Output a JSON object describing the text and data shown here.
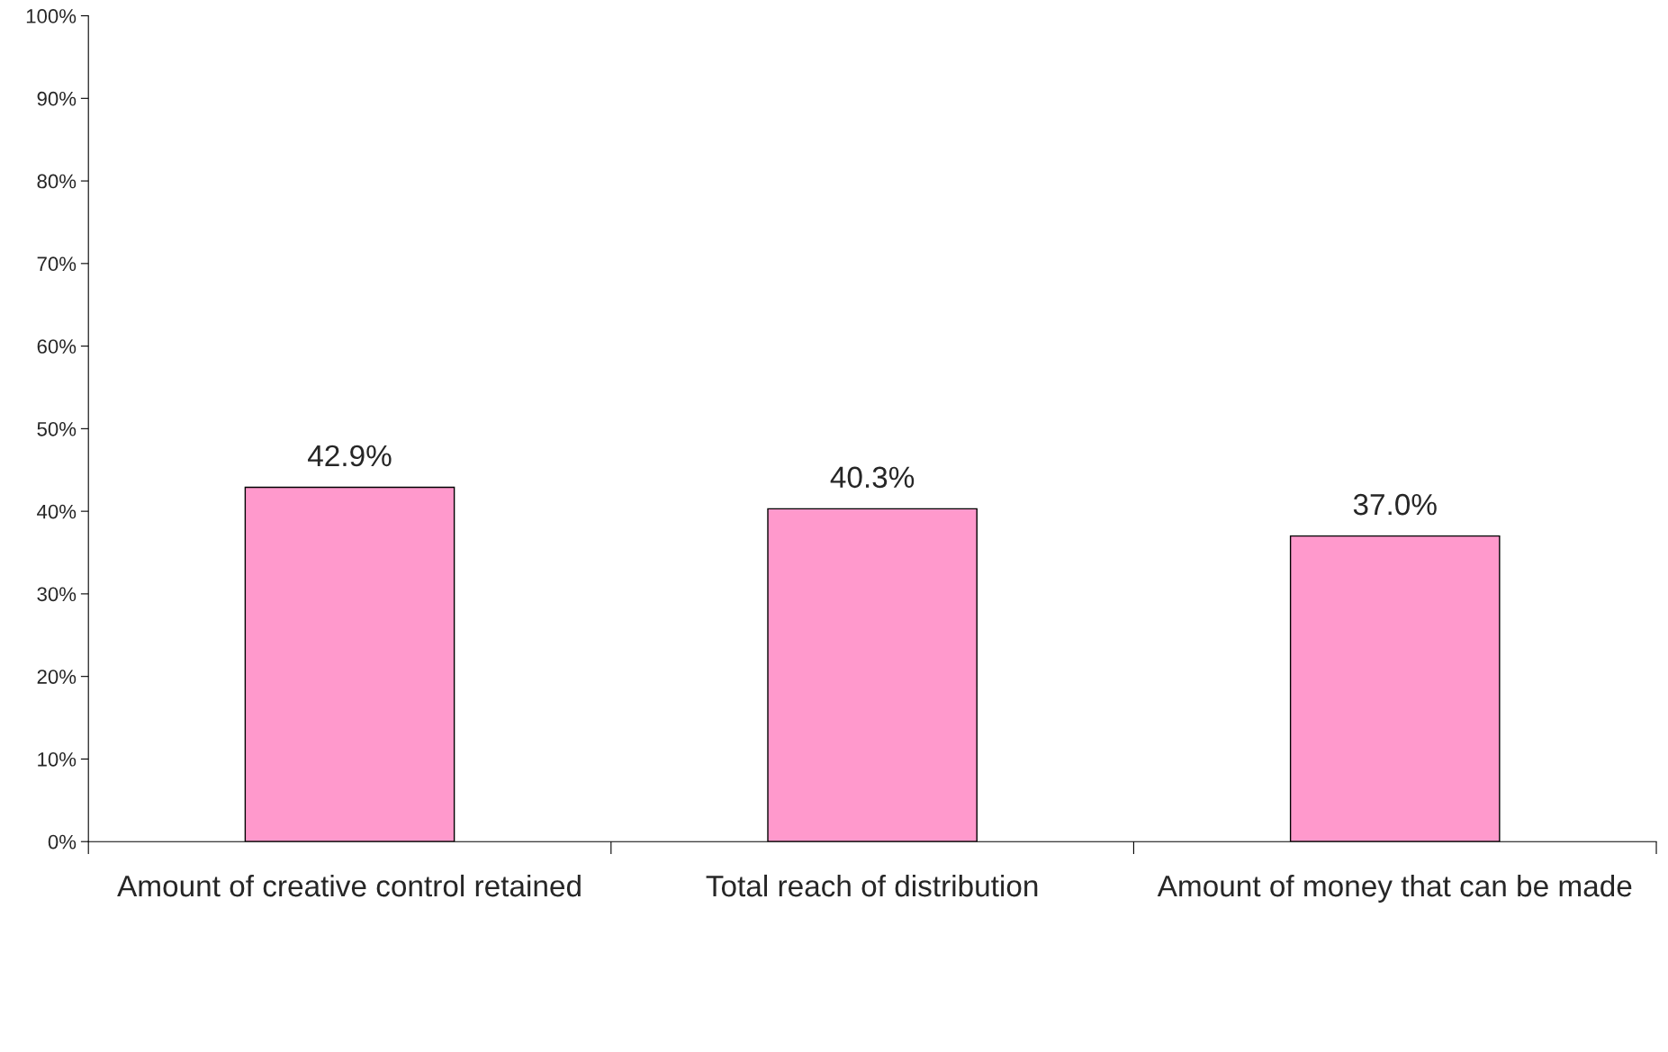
{
  "chart_data": {
    "type": "bar",
    "categories": [
      "Amount of creative control retained",
      "Total reach of distribution",
      "Amount of money that can be made"
    ],
    "values": [
      42.9,
      40.3,
      37.0
    ],
    "color": "#ff99cc",
    "value_labels": [
      "42.9%",
      "40.3%",
      "37.0%"
    ],
    "ylim": [
      0,
      100
    ],
    "yticks": [
      {
        "value": 0,
        "label": "0%"
      },
      {
        "value": 10,
        "label": "10%"
      },
      {
        "value": 20,
        "label": "20%"
      },
      {
        "value": 30,
        "label": "30%"
      },
      {
        "value": 40,
        "label": "40%"
      },
      {
        "value": 50,
        "label": "50%"
      },
      {
        "value": 60,
        "label": "60%"
      },
      {
        "value": 70,
        "label": "70%"
      },
      {
        "value": 80,
        "label": "80%"
      },
      {
        "value": 90,
        "label": "90%"
      },
      {
        "value": 100,
        "label": "100%"
      }
    ],
    "grid": false,
    "legend": false
  }
}
